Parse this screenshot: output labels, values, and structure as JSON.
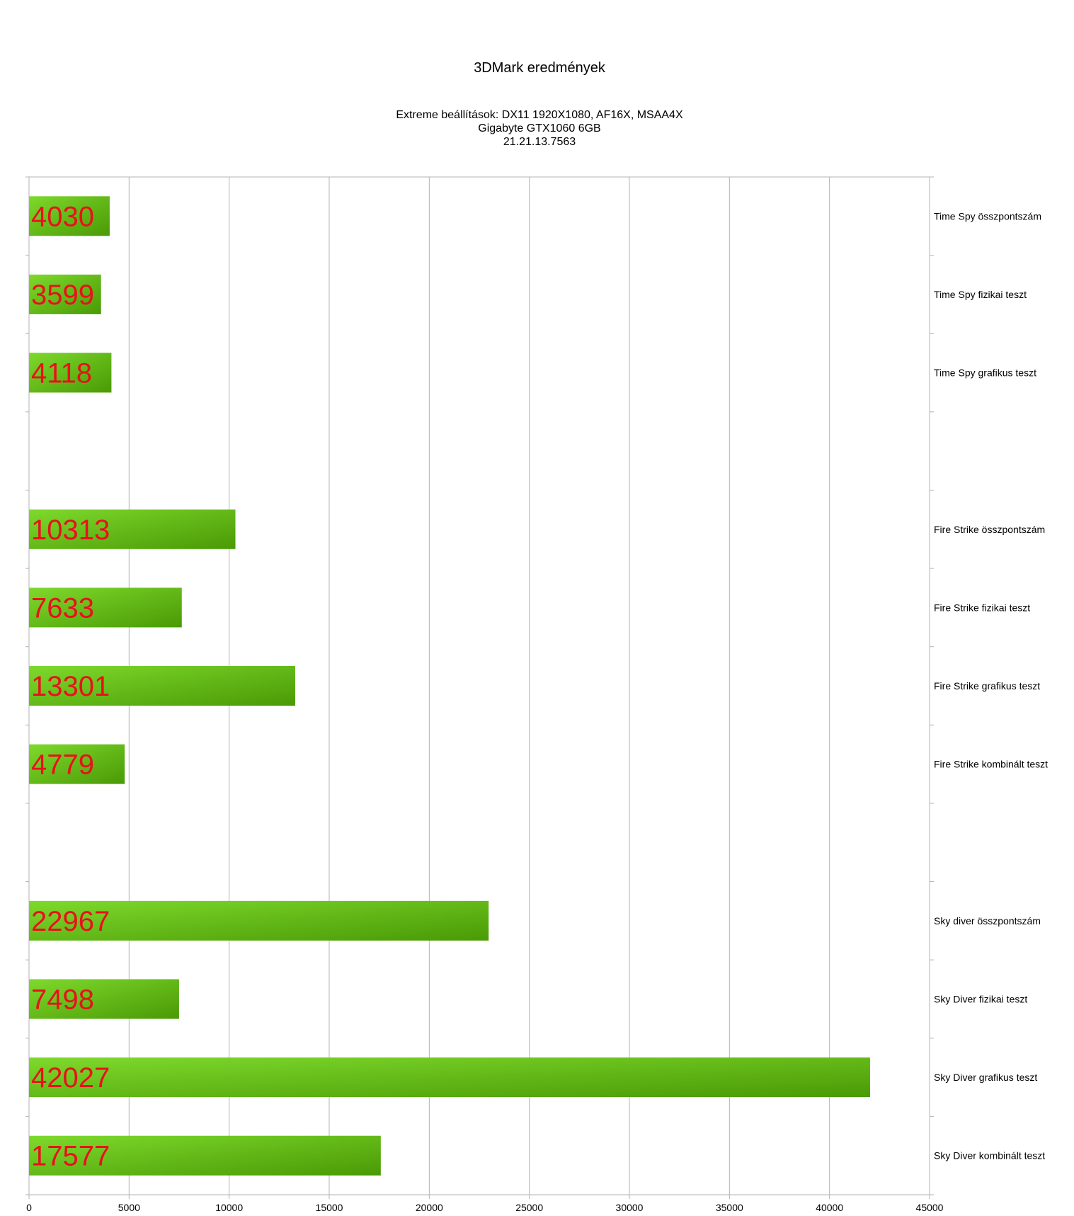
{
  "chart_data": {
    "type": "bar",
    "orientation": "horizontal",
    "title": "3DMark eredmények",
    "subtitle_lines": [
      "Extreme beállítások: DX11 1920X1080, AF16X, MSAA4X",
      "Gigabyte GTX1060 6GB",
      "21.21.13.7563"
    ],
    "categories": [
      "Time Spy összpontszám",
      "Time Spy fizikai teszt",
      "Time Spy grafikus teszt",
      "",
      "Fire Strike összpontszám",
      "Fire Strike fizikai teszt",
      "Fire Strike grafikus teszt",
      "Fire Strike kombinált teszt",
      "",
      "Sky diver összpontszám",
      "Sky Diver fizikai teszt",
      "Sky Diver grafikus teszt",
      "Sky Diver kombinált teszt"
    ],
    "values": [
      4030,
      3599,
      4118,
      null,
      10313,
      7633,
      13301,
      4779,
      null,
      22967,
      7498,
      42027,
      17577
    ],
    "data_labels": [
      "4030",
      "3599",
      "4118",
      "",
      "10313",
      "7633",
      "13301",
      "4779",
      "",
      "22967",
      "7498",
      "42027",
      "17577"
    ],
    "xlim": [
      0,
      45000
    ],
    "x_ticks": [
      0,
      5000,
      10000,
      15000,
      20000,
      25000,
      30000,
      35000,
      40000,
      45000
    ],
    "x_tick_labels": [
      "0",
      "5000",
      "10000",
      "15000",
      "20000",
      "25000",
      "30000",
      "35000",
      "40000",
      "45000"
    ],
    "xlabel": "",
    "ylabel": "",
    "grid": "vertical",
    "legend": "none",
    "category_label_side": "right",
    "colors": {
      "bar_light": "#7ED92C",
      "bar_dark": "#4A9A05",
      "data_label": "#E8111B",
      "grid": "#B3B3B3",
      "text": "#000000"
    }
  }
}
